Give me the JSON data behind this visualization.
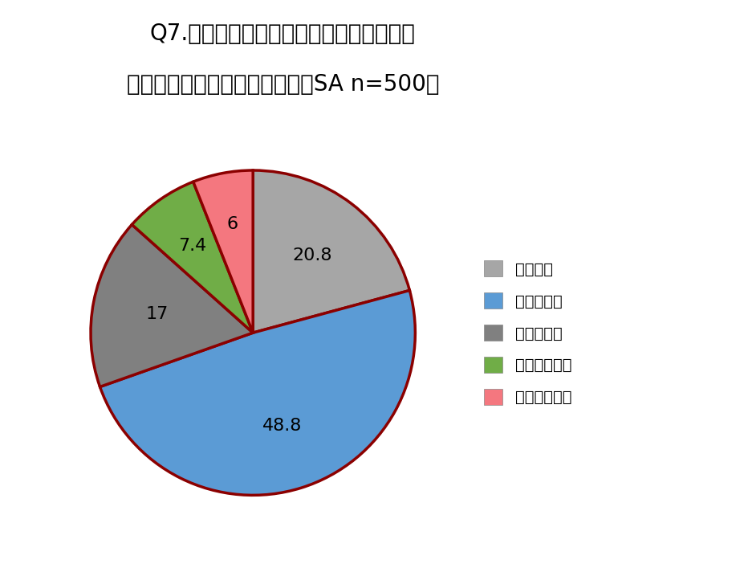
{
  "title_line1": "Q7.ヘッドホン着用による装着「疲れ」を",
  "title_line2": "感じた経験はありますか？　（SA n=500）",
  "labels": [
    "よくある",
    "たまにある",
    "あまりない",
    "ほとんどない",
    "まったくない"
  ],
  "values": [
    20.8,
    48.8,
    17.0,
    7.4,
    6.0
  ],
  "colors": [
    "#a6a6a6",
    "#5b9bd5",
    "#808080",
    "#70ad47",
    "#f4777f"
  ],
  "pie_edge_color": "#8b0000",
  "pie_linewidth": 2.5,
  "label_texts": [
    "20.8",
    "48.8",
    "17",
    "7.4",
    "6"
  ],
  "label_fontsize": 16,
  "legend_fontsize": 14,
  "title_fontsize": 20,
  "background_color": "#ffffff",
  "startangle": 90
}
